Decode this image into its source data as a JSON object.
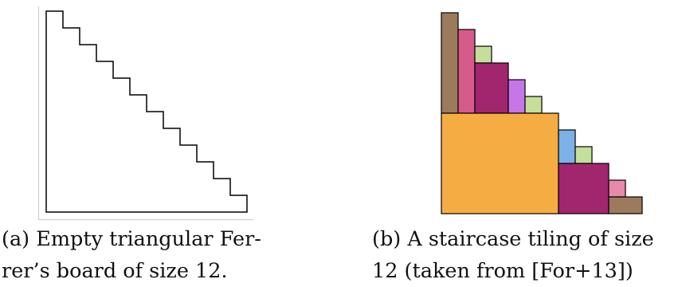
{
  "figure": {
    "panel_a": {
      "board_size": 12,
      "caption_line_1": "(a)  Empty  triangular  Fer-",
      "caption_line_2": "rer’s board of size 12."
    },
    "panel_b": {
      "board_size": 12,
      "caption_line_1": "(b) A staircase tiling of size",
      "caption_line_2": "12 (taken from [For+13])",
      "tiles": [
        {
          "col": 0,
          "row": 0,
          "w": 1,
          "h": 6,
          "color": "#9c7a5c"
        },
        {
          "col": 1,
          "row": 1,
          "w": 1,
          "h": 5,
          "color": "#d65a8a"
        },
        {
          "col": 2,
          "row": 2,
          "w": 1,
          "h": 1,
          "color": "#c5df9a"
        },
        {
          "col": 2,
          "row": 3,
          "w": 2,
          "h": 3,
          "color": "#a1266e"
        },
        {
          "col": 4,
          "row": 4,
          "w": 1,
          "h": 2,
          "color": "#c776e8"
        },
        {
          "col": 5,
          "row": 5,
          "w": 1,
          "h": 1,
          "color": "#c5df9a"
        },
        {
          "col": 0,
          "row": 6,
          "w": 7,
          "h": 6,
          "color": "#f5ad43"
        },
        {
          "col": 7,
          "row": 7,
          "w": 1,
          "h": 2,
          "color": "#7bb1e6"
        },
        {
          "col": 8,
          "row": 8,
          "w": 1,
          "h": 1,
          "color": "#c5df9a"
        },
        {
          "col": 7,
          "row": 9,
          "w": 3,
          "h": 3,
          "color": "#a1266e"
        },
        {
          "col": 10,
          "row": 10,
          "w": 1,
          "h": 1,
          "color": "#e68aa8"
        },
        {
          "col": 10,
          "row": 11,
          "w": 2,
          "h": 1,
          "color": "#9c7a5c"
        }
      ]
    }
  }
}
